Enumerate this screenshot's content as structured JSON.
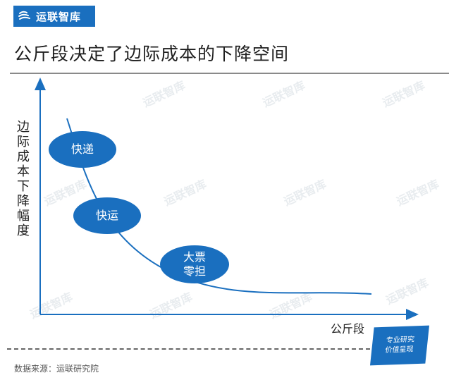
{
  "brand": {
    "name": "运联智库",
    "color": "#1a6fbf"
  },
  "title": "公斤段决定了边际成本的下降空间",
  "diagram": {
    "y_axis_label": "边际成本下降幅度",
    "x_axis_label": "公斤段",
    "curve_color": "#1a6fbf",
    "bubbles": [
      {
        "label": "快递"
      },
      {
        "label": "快运"
      },
      {
        "label": "大票零担"
      }
    ]
  },
  "source": "数据来源：运联研究院",
  "badge": {
    "line1": "专业研究",
    "line2": "价值呈现"
  },
  "watermark_text": "运联智库"
}
